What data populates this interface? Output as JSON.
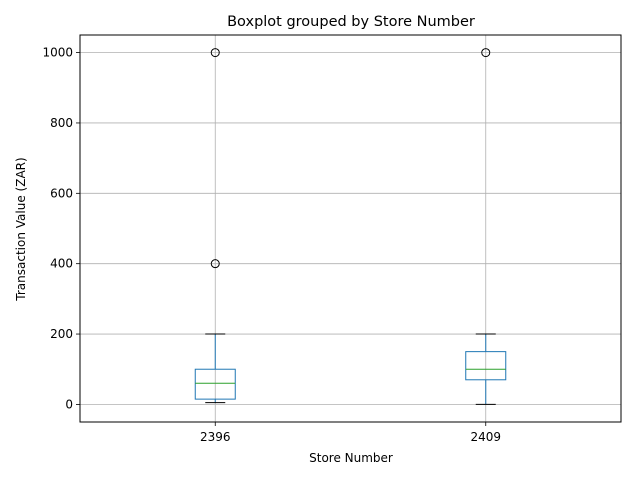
{
  "chart_data": {
    "type": "boxplot",
    "title": "Boxplot grouped by Store Number",
    "xlabel": "Store Number",
    "ylabel": "Transaction Value (ZAR)",
    "ylim": [
      -50,
      1050
    ],
    "yticks": [
      0,
      200,
      400,
      600,
      800,
      1000
    ],
    "grid": true,
    "categories": [
      "2396",
      "2409"
    ],
    "boxes": [
      {
        "category": "2396",
        "whisker_low": 5,
        "q1": 15,
        "median": 60,
        "q3": 100,
        "whisker_high": 200,
        "outliers": [
          400,
          1000
        ]
      },
      {
        "category": "2409",
        "whisker_low": 0,
        "q1": 70,
        "median": 100,
        "q3": 150,
        "whisker_high": 200,
        "outliers": [
          1000
        ]
      }
    ],
    "colors": {
      "box": "#1f77b4",
      "median": "#2ca02c",
      "whisker": "#1f77b4",
      "cap": "#000000",
      "grid": "#b0b0b0"
    }
  }
}
